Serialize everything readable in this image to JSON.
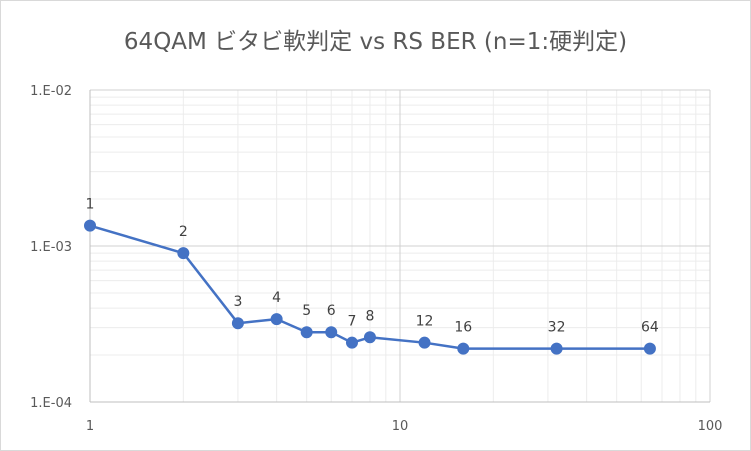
{
  "chart_data": {
    "type": "line",
    "title": "64QAM ビタビ軟判定 vs RS BER (n=1:硬判定)",
    "xscale": "log",
    "yscale": "log",
    "xlim": [
      1,
      100
    ],
    "ylim": [
      0.0001,
      0.01
    ],
    "x_ticks": [
      "1",
      "10",
      "100"
    ],
    "y_ticks": [
      "1.E-02",
      "1.E-03",
      "1.E-04"
    ],
    "grid": true,
    "series": [
      {
        "color": "#4472c4",
        "x": [
          1,
          2,
          3,
          4,
          5,
          6,
          7,
          8,
          12,
          16,
          32,
          64
        ],
        "y": [
          0.00135,
          0.0009,
          0.00032,
          0.00034,
          0.00028,
          0.00028,
          0.00024,
          0.00026,
          0.00024,
          0.00022,
          0.00022,
          0.00022
        ],
        "data_labels": [
          "1",
          "2",
          "3",
          "4",
          "5",
          "6",
          "7",
          "8",
          "12",
          "16",
          "32",
          "64"
        ]
      }
    ]
  }
}
